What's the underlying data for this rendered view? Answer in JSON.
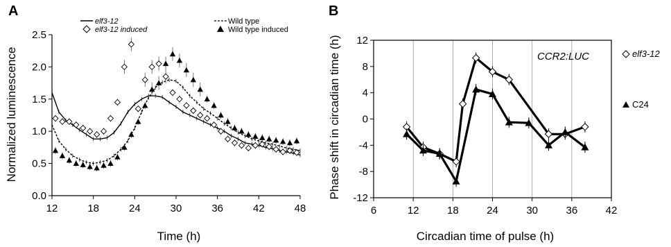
{
  "chart_data": [
    {
      "panel": "A",
      "type": "line",
      "xlabel": "Time (h)",
      "ylabel": "Normalized luminescence",
      "xlim": [
        12,
        48
      ],
      "ylim": [
        0,
        2.5
      ],
      "xticks": [
        12,
        18,
        24,
        30,
        36,
        42,
        48
      ],
      "yticks": [
        0.0,
        0.5,
        1.0,
        1.5,
        2.0,
        2.5
      ],
      "ytick_labels": [
        "0.0",
        "0.5",
        "1.0",
        "1.5",
        "2.0",
        "2.5"
      ],
      "grid": false,
      "legend_position": "top",
      "series": [
        {
          "name": "elf3-12",
          "style": "solid",
          "x": [
            12,
            13,
            14,
            15,
            16,
            17,
            18,
            19,
            20,
            21,
            22,
            23,
            24,
            25,
            26,
            27,
            28,
            29,
            30,
            31,
            32,
            33,
            34,
            35,
            36,
            37,
            38,
            39,
            40,
            41,
            42,
            43,
            44,
            45,
            46,
            47,
            48
          ],
          "y": [
            1.6,
            1.3,
            1.17,
            1.1,
            1.02,
            0.95,
            0.88,
            0.88,
            0.9,
            0.98,
            1.12,
            1.3,
            1.42,
            1.5,
            1.55,
            1.55,
            1.53,
            1.45,
            1.38,
            1.3,
            1.25,
            1.2,
            1.15,
            1.1,
            1.05,
            1.0,
            0.93,
            0.88,
            0.82,
            0.8,
            0.78,
            0.75,
            0.73,
            0.7,
            0.68,
            0.66,
            0.63
          ]
        },
        {
          "name": "Wild type",
          "style": "dashed",
          "x": [
            12,
            13,
            14,
            15,
            16,
            17,
            18,
            19,
            20,
            21,
            22,
            23,
            24,
            25,
            26,
            27,
            28,
            29,
            30,
            31,
            32,
            33,
            34,
            35,
            36,
            37,
            38,
            39,
            40,
            41,
            42,
            43,
            44,
            45,
            46,
            47,
            48
          ],
          "y": [
            1.1,
            0.85,
            0.72,
            0.62,
            0.56,
            0.52,
            0.5,
            0.52,
            0.55,
            0.62,
            0.72,
            0.85,
            1.05,
            1.3,
            1.52,
            1.68,
            1.76,
            1.8,
            1.78,
            1.68,
            1.55,
            1.45,
            1.35,
            1.28,
            1.2,
            1.12,
            1.05,
            0.98,
            0.93,
            0.88,
            0.85,
            0.82,
            0.8,
            0.77,
            0.74,
            0.72,
            0.7
          ]
        },
        {
          "name": "elf3-12 induced",
          "style": "open-diamond",
          "x": [
            12.5,
            13.5,
            14.5,
            15.5,
            16.5,
            17.5,
            18.5,
            19.5,
            20.5,
            21.5,
            22.5,
            23.5,
            24.5,
            25.5,
            26.5,
            27.5,
            28.5,
            29.5,
            30.5,
            31.5,
            32.5,
            33.5,
            34.5,
            35.5,
            36.5,
            37.5,
            38.5,
            39.5,
            40.5,
            41.5,
            42.5,
            43.5,
            44.5,
            45.5,
            46.5,
            47.5
          ],
          "y": [
            1.2,
            1.15,
            1.15,
            1.1,
            1.05,
            1.0,
            0.95,
            1.0,
            1.2,
            1.45,
            2.0,
            2.35,
            1.35,
            1.8,
            2.0,
            2.05,
            1.85,
            1.6,
            1.5,
            1.4,
            1.32,
            1.25,
            1.2,
            1.1,
            1.0,
            0.88,
            0.82,
            0.78,
            0.74,
            0.78,
            0.8,
            0.76,
            0.72,
            0.68,
            0.7,
            0.67
          ]
        },
        {
          "name": "Wild type induced",
          "style": "filled-triangle",
          "x": [
            12.5,
            13.5,
            14.5,
            15.5,
            16.5,
            17.5,
            18.5,
            19.5,
            20.5,
            21.5,
            22.5,
            23.5,
            24.5,
            25.5,
            26.5,
            27.5,
            28.5,
            29.5,
            30.5,
            31.5,
            32.5,
            33.5,
            34.5,
            35.5,
            36.5,
            37.5,
            38.5,
            39.5,
            40.5,
            41.5,
            42.5,
            43.5,
            44.5,
            45.5,
            46.5,
            47.5
          ],
          "y": [
            0.7,
            0.62,
            0.55,
            0.5,
            0.48,
            0.45,
            0.43,
            0.47,
            0.5,
            0.6,
            0.75,
            0.95,
            1.15,
            1.4,
            1.65,
            1.75,
            2.05,
            2.2,
            2.1,
            1.95,
            1.8,
            1.65,
            1.5,
            1.4,
            1.25,
            1.15,
            1.05,
            1.0,
            0.95,
            0.92,
            0.9,
            0.88,
            0.86,
            0.84,
            0.82,
            0.85
          ]
        }
      ]
    },
    {
      "panel": "B",
      "type": "line",
      "annotation": "CCR2:LUC",
      "xlabel": "Circadian time of pulse (h)",
      "ylabel": "Phase shift in circadian time (h)",
      "xlim": [
        6,
        42
      ],
      "ylim": [
        -12,
        12
      ],
      "xticks": [
        6,
        12,
        18,
        24,
        30,
        36,
        42
      ],
      "yticks": [
        -12,
        -8,
        -4,
        0,
        4,
        8,
        12
      ],
      "grid": "vertical",
      "legend_position": "right",
      "series": [
        {
          "name": "elf3-12",
          "marker": "open-diamond",
          "x": [
            11,
            13.5,
            16,
            18.5,
            19.5,
            21.5,
            24,
            26.5,
            32.5,
            35,
            38
          ],
          "y": [
            -1.2,
            -4.3,
            -5.3,
            -6.5,
            2.3,
            9.3,
            7.2,
            6.0,
            -2.3,
            -2.3,
            -1.2
          ]
        },
        {
          "name": "C24",
          "marker": "filled-triangle",
          "x": [
            11,
            13.5,
            16,
            18.5,
            21.5,
            24,
            26.5,
            29.5,
            32.5,
            35,
            38
          ],
          "y": [
            -2.3,
            -4.8,
            -5.3,
            -9.5,
            4.5,
            3.8,
            -0.5,
            -0.6,
            -4.0,
            -2.0,
            -4.3
          ]
        }
      ]
    }
  ]
}
